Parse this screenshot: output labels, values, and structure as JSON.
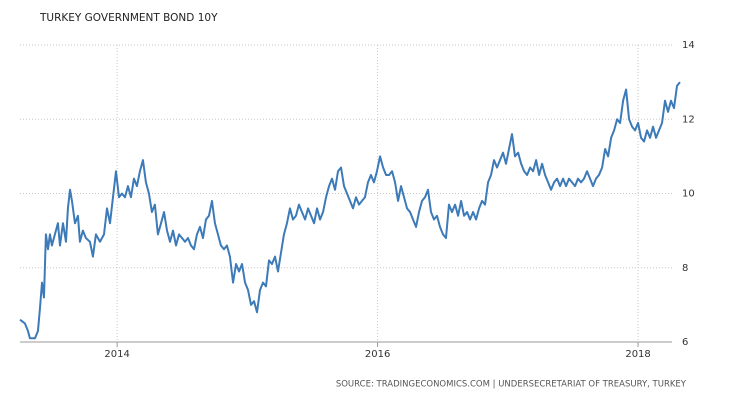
{
  "chart_data": {
    "type": "line",
    "title": "TURKEY GOVERNMENT BOND 10Y",
    "source": "SOURCE: TRADINGECONOMICS.COM | UNDERSECRETARIAT OF TREASURY, TURKEY",
    "color": "#3d7ab8",
    "grid": true,
    "xlim": [
      2013.254,
      2018.322
    ],
    "xticks": [
      2014,
      2016,
      2018
    ],
    "ylim": [
      6,
      14
    ],
    "yticks": [
      6,
      8,
      10,
      12,
      14
    ],
    "x": [
      2013.254,
      2013.292,
      2013.315,
      2013.33,
      2013.369,
      2013.392,
      2013.407,
      2013.423,
      2013.438,
      2013.453,
      2013.469,
      2013.484,
      2013.499,
      2013.522,
      2013.545,
      2013.561,
      2013.584,
      2013.607,
      2013.622,
      2013.638,
      2013.653,
      2013.676,
      2013.699,
      2013.714,
      2013.737,
      2013.76,
      2013.791,
      2013.814,
      2013.837,
      2013.868,
      2013.899,
      2013.922,
      2013.945,
      2013.968,
      2013.991,
      2014.014,
      2014.037,
      2014.06,
      2014.083,
      2014.106,
      2014.129,
      2014.152,
      2014.175,
      2014.198,
      2014.221,
      2014.244,
      2014.267,
      2014.29,
      2014.313,
      2014.337,
      2014.36,
      2014.383,
      2014.406,
      2014.429,
      2014.452,
      2014.475,
      2014.498,
      2014.521,
      2014.544,
      2014.567,
      2014.59,
      2014.613,
      2014.636,
      2014.659,
      2014.682,
      2014.705,
      2014.728,
      2014.751,
      2014.774,
      2014.797,
      2014.82,
      2014.843,
      2014.866,
      2014.89,
      2014.913,
      2014.936,
      2014.959,
      2014.982,
      2015.005,
      2015.028,
      2015.051,
      2015.074,
      2015.097,
      2015.12,
      2015.143,
      2015.166,
      2015.189,
      2015.212,
      2015.235,
      2015.258,
      2015.281,
      2015.304,
      2015.327,
      2015.35,
      2015.373,
      2015.396,
      2015.419,
      2015.443,
      2015.466,
      2015.489,
      2015.512,
      2015.535,
      2015.558,
      2015.581,
      2015.604,
      2015.627,
      2015.65,
      2015.673,
      2015.696,
      2015.719,
      2015.742,
      2015.765,
      2015.788,
      2015.811,
      2015.834,
      2015.857,
      2015.88,
      2015.903,
      2015.926,
      2015.949,
      2015.972,
      2015.995,
      2016.019,
      2016.042,
      2016.065,
      2016.088,
      2016.111,
      2016.134,
      2016.157,
      2016.18,
      2016.203,
      2016.226,
      2016.249,
      2016.272,
      2016.295,
      2016.318,
      2016.341,
      2016.364,
      2016.387,
      2016.41,
      2016.433,
      2016.456,
      2016.479,
      2016.502,
      2016.525,
      2016.548,
      2016.571,
      2016.595,
      2016.618,
      2016.641,
      2016.664,
      2016.687,
      2016.71,
      2016.733,
      2016.756,
      2016.779,
      2016.802,
      2016.825,
      2016.848,
      2016.871,
      2016.894,
      2016.917,
      2016.94,
      2016.963,
      2016.986,
      2017.009,
      2017.032,
      2017.055,
      2017.079,
      2017.102,
      2017.125,
      2017.148,
      2017.171,
      2017.194,
      2017.217,
      2017.24,
      2017.263,
      2017.286,
      2017.309,
      2017.332,
      2017.355,
      2017.378,
      2017.401,
      2017.424,
      2017.447,
      2017.47,
      2017.493,
      2017.516,
      2017.539,
      2017.562,
      2017.585,
      2017.608,
      2017.631,
      2017.654,
      2017.677,
      2017.7,
      2017.724,
      2017.747,
      2017.77,
      2017.793,
      2017.816,
      2017.839,
      2017.862,
      2017.885,
      2017.908,
      2017.931,
      2017.954,
      2017.977,
      2018.0,
      2018.023,
      2018.046,
      2018.069,
      2018.092,
      2018.115,
      2018.138,
      2018.161,
      2018.184,
      2018.207,
      2018.23,
      2018.253,
      2018.276,
      2018.299,
      2018.322
    ],
    "values": [
      6.6,
      6.5,
      6.3,
      6.1,
      6.1,
      6.3,
      6.9,
      7.6,
      7.2,
      8.9,
      8.5,
      8.9,
      8.6,
      8.9,
      9.2,
      8.6,
      9.2,
      8.7,
      9.6,
      10.1,
      9.8,
      9.2,
      9.4,
      8.7,
      9.0,
      8.8,
      8.7,
      8.3,
      8.9,
      8.7,
      8.9,
      9.6,
      9.2,
      9.9,
      10.6,
      9.9,
      10.0,
      9.9,
      10.2,
      9.9,
      10.4,
      10.2,
      10.6,
      10.9,
      10.3,
      10.0,
      9.5,
      9.7,
      8.9,
      9.2,
      9.5,
      9.0,
      8.7,
      9.0,
      8.6,
      8.9,
      8.8,
      8.7,
      8.8,
      8.6,
      8.5,
      8.9,
      9.1,
      8.8,
      9.3,
      9.4,
      9.8,
      9.2,
      8.9,
      8.6,
      8.5,
      8.6,
      8.3,
      7.6,
      8.1,
      7.9,
      8.1,
      7.6,
      7.4,
      7.0,
      7.1,
      6.8,
      7.4,
      7.6,
      7.5,
      8.2,
      8.1,
      8.3,
      7.9,
      8.4,
      8.9,
      9.2,
      9.6,
      9.3,
      9.4,
      9.7,
      9.5,
      9.3,
      9.6,
      9.4,
      9.2,
      9.6,
      9.3,
      9.5,
      9.9,
      10.2,
      10.4,
      10.1,
      10.6,
      10.7,
      10.2,
      10.0,
      9.8,
      9.6,
      9.9,
      9.7,
      9.8,
      9.9,
      10.3,
      10.5,
      10.3,
      10.6,
      11.0,
      10.7,
      10.5,
      10.5,
      10.6,
      10.3,
      9.8,
      10.2,
      9.9,
      9.6,
      9.5,
      9.3,
      9.1,
      9.5,
      9.8,
      9.9,
      10.1,
      9.5,
      9.3,
      9.4,
      9.1,
      8.9,
      8.8,
      9.7,
      9.5,
      9.7,
      9.4,
      9.8,
      9.4,
      9.5,
      9.3,
      9.5,
      9.3,
      9.6,
      9.8,
      9.7,
      10.3,
      10.5,
      10.9,
      10.7,
      10.9,
      11.1,
      10.8,
      11.2,
      11.6,
      11.0,
      11.1,
      10.8,
      10.6,
      10.5,
      10.7,
      10.6,
      10.9,
      10.5,
      10.8,
      10.5,
      10.3,
      10.1,
      10.3,
      10.4,
      10.2,
      10.4,
      10.2,
      10.4,
      10.3,
      10.2,
      10.4,
      10.3,
      10.4,
      10.6,
      10.4,
      10.2,
      10.4,
      10.5,
      10.7,
      11.2,
      11.0,
      11.5,
      11.7,
      12.0,
      11.9,
      12.5,
      12.8,
      12.0,
      11.8,
      11.7,
      11.9,
      11.5,
      11.4,
      11.7,
      11.5,
      11.8,
      11.5,
      11.7,
      11.9,
      12.5,
      12.2,
      12.5,
      12.3,
      12.9,
      13.0
    ]
  }
}
